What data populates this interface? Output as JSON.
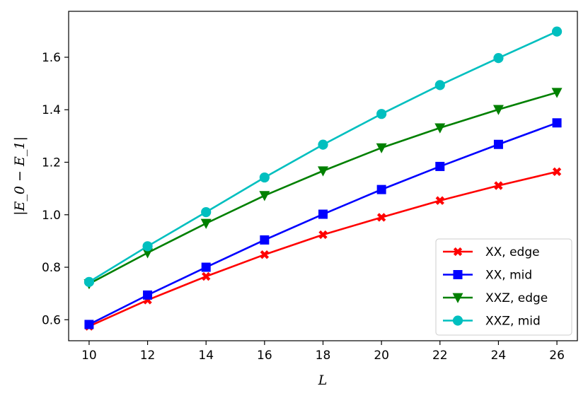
{
  "chart_data": {
    "type": "line",
    "title": "",
    "xlabel": "L",
    "ylabel": "|E_0 − E_1|",
    "xlim": [
      9.3,
      26.7
    ],
    "ylim": [
      0.52,
      1.775
    ],
    "x": [
      10,
      12,
      14,
      16,
      18,
      20,
      22,
      24,
      26
    ],
    "xticks": [
      "10",
      "12",
      "14",
      "16",
      "18",
      "20",
      "22",
      "24",
      "26"
    ],
    "yticks": [
      "0.6",
      "0.8",
      "1.0",
      "1.2",
      "1.4",
      "1.6"
    ],
    "grid": false,
    "legend_position": "lower-right",
    "series": [
      {
        "name": "XX, edge",
        "color": "#ff0000",
        "marker": "x-filled",
        "values": [
          0.575,
          0.675,
          0.765,
          0.848,
          0.924,
          0.99,
          1.054,
          1.111,
          1.164
        ]
      },
      {
        "name": "XX, mid",
        "color": "#0000ff",
        "marker": "square",
        "values": [
          0.582,
          0.694,
          0.8,
          0.904,
          1.002,
          1.096,
          1.184,
          1.268,
          1.35
        ]
      },
      {
        "name": "XXZ, edge",
        "color": "#008000",
        "marker": "triangle-down",
        "values": [
          0.737,
          0.855,
          0.967,
          1.073,
          1.167,
          1.255,
          1.331,
          1.401,
          1.466
        ]
      },
      {
        "name": "XXZ, mid",
        "color": "#00bfbf",
        "marker": "circle",
        "values": [
          0.744,
          0.88,
          1.01,
          1.142,
          1.267,
          1.384,
          1.494,
          1.597,
          1.698
        ]
      }
    ]
  }
}
